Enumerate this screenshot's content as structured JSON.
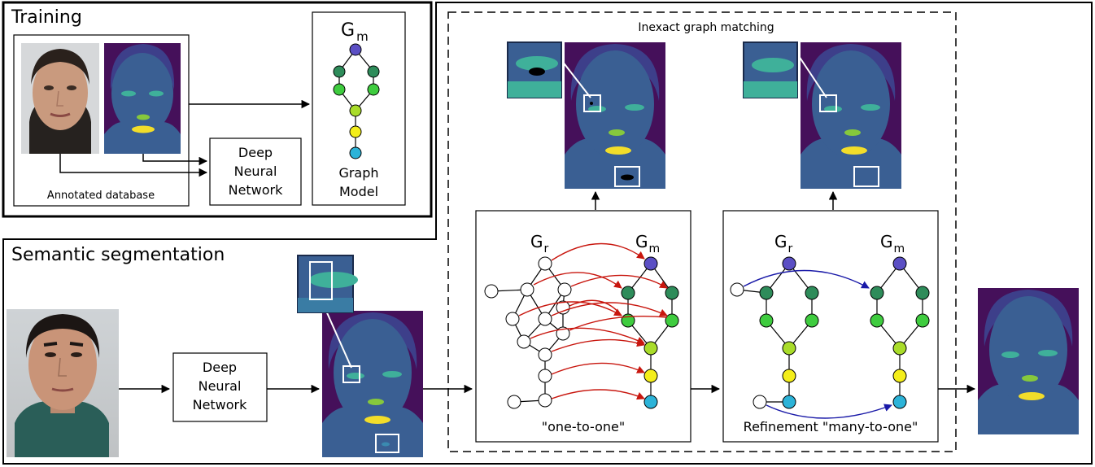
{
  "training": {
    "title": "Training",
    "db_caption": "Annotated database",
    "dnn_label": [
      "Deep",
      "Neural",
      "Network"
    ],
    "graph_title": "G",
    "graph_title_sub": "m",
    "graph_label": [
      "Graph",
      "Model"
    ]
  },
  "segmentation": {
    "title": "Semantic segmentation",
    "dnn_label": [
      "Deep",
      "Neural",
      "Network"
    ]
  },
  "matching": {
    "title": "Inexact graph matching",
    "g_r": "G",
    "g_r_sub": "r",
    "g_m": "G",
    "g_m_sub": "m",
    "one_to_one": "\"one-to-one\"",
    "many_to_one": "Refinement \"many-to-one\""
  },
  "colors": {
    "purple_bg": "#45105a",
    "hair": "#3d3f8a",
    "face": "#3a5f93",
    "eyes": "#3fb09a",
    "nose": "#86c83c",
    "mouth": "#f2dd2a",
    "node_top": "#5b4fc4",
    "node_dark_green": "#2e8c5a",
    "node_green": "#3fcc3f",
    "node_yellow_green": "#a9dc2a",
    "node_yellow": "#f4ee1a",
    "node_cyan": "#2cb3d8",
    "red_arrow": "#c8160e",
    "blue_arrow": "#1a1aa8"
  }
}
